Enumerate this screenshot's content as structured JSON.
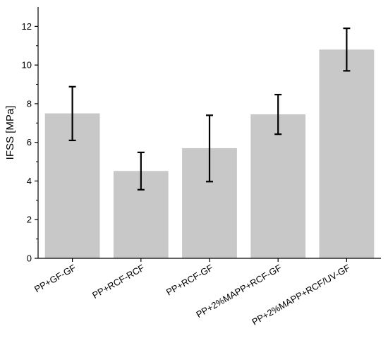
{
  "chart_data": {
    "type": "bar",
    "title": "",
    "xlabel": "",
    "ylabel": "IFSS [MPa]",
    "categories": [
      "PP+GF-GF",
      "PP+RCF-RCF",
      "PP+RCF-GF",
      "PP+2%MAPP+RCF-GF",
      "PP+2%MAPP+RCF/UV-GF"
    ],
    "values": [
      7.5,
      4.52,
      5.7,
      7.45,
      10.8
    ],
    "error": [
      {
        "low": 6.1,
        "high": 8.88
      },
      {
        "low": 3.55,
        "high": 5.48
      },
      {
        "low": 3.97,
        "high": 7.4
      },
      {
        "low": 6.42,
        "high": 8.47
      },
      {
        "low": 9.7,
        "high": 11.9
      }
    ],
    "ylim": [
      0,
      13
    ],
    "yticks": [
      "0",
      "2",
      "4",
      "6",
      "8",
      "10",
      "12"
    ],
    "grid": false,
    "bar_color": "#c8c8c8",
    "error_color": "#000000"
  }
}
